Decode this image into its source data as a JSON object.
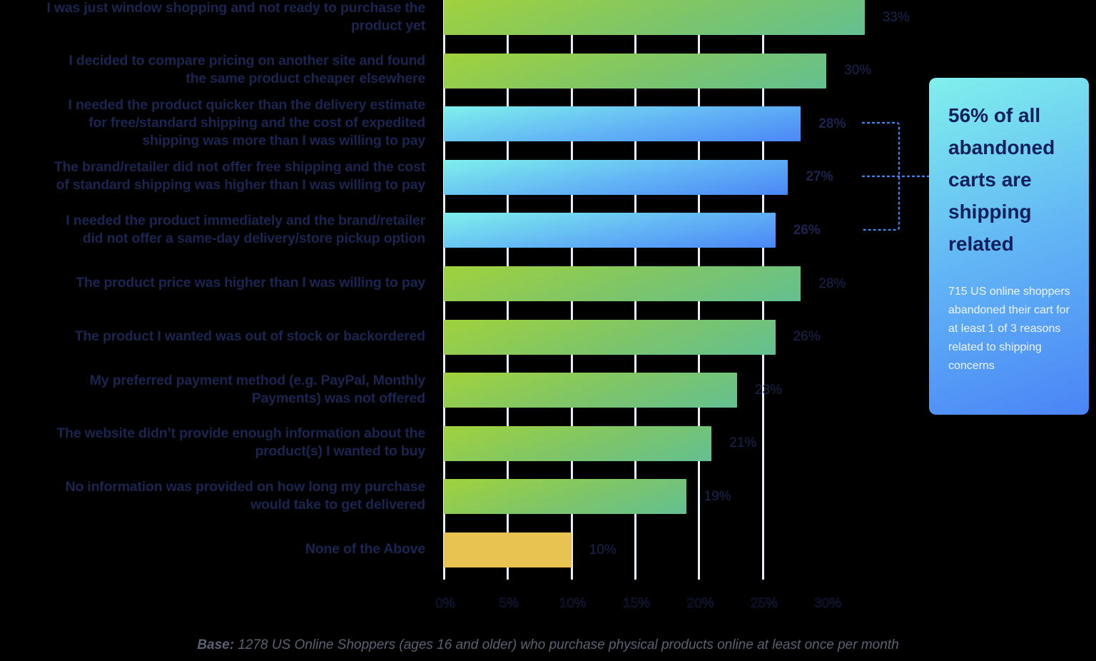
{
  "chart_data": {
    "type": "bar",
    "orientation": "horizontal",
    "title": "",
    "xlabel": "",
    "ylabel": "",
    "xlim": [
      0,
      33
    ],
    "x_ticks": [
      "0%",
      "5%",
      "10%",
      "15%",
      "20%",
      "25%",
      "30%"
    ],
    "grid": true,
    "categories": [
      "I was just window shopping and not ready to purchase the product yet",
      "I decided to compare pricing on another site and found the same product cheaper elsewhere",
      "I needed the product quicker than the delivery estimate for free/standard shipping and the cost of expedited shipping was more than I was willing to pay",
      "The brand/retailer did not offer free shipping and the cost of standard shipping was higher than I was willing to pay",
      "I needed the product immediately and the brand/retailer did not offer a same-day delivery/store pickup option",
      "The product price was higher than I was willing to pay",
      "The product I wanted was out of stock or backordered",
      "My preferred payment method (e.g. PayPal, Monthly Payments) was not offered",
      "The website didn't provide enough information about the product(s) I wanted to buy",
      "No information was provided on how long my purchase would take to get delivered",
      "None of the Above"
    ],
    "values": [
      33,
      30,
      28,
      27,
      26,
      28,
      26,
      23,
      21,
      19,
      10
    ],
    "value_labels": [
      "33%",
      "30%",
      "28%",
      "27%",
      "26%",
      "28%",
      "26%",
      "23%",
      "21%",
      "19%",
      "10%"
    ],
    "highlight_group": {
      "indices": [
        2,
        3,
        4
      ],
      "label": "shipping related",
      "color": "#4b87f6"
    },
    "colors": {
      "default": "#7dc56a",
      "shipping": "#62b4f5",
      "none": "#e8c352"
    },
    "footnote": "Base: 1278 US Online Shoppers (ages 16 and older) who purchase physical products online at least once per month"
  },
  "rows": [
    {
      "label_lines": [
        "I was just window shopping and not ready to purchase the",
        "product yet"
      ],
      "value": 33,
      "value_label": "33%",
      "kind": "green"
    },
    {
      "label_lines": [
        "I decided to compare pricing on another site and found",
        "the same product cheaper elsewhere"
      ],
      "value": 30,
      "value_label": "30%",
      "kind": "green"
    },
    {
      "label_lines": [
        "I needed the product quicker than the delivery estimate",
        "for free/standard shipping and the cost of expedited",
        "shipping was more than I was willing to pay"
      ],
      "value": 28,
      "value_label": "28%",
      "kind": "blue"
    },
    {
      "label_lines": [
        "The brand/retailer did not offer free shipping and the cost",
        "of standard shipping was higher than I was willing to pay"
      ],
      "value": 27,
      "value_label": "27%",
      "kind": "blue"
    },
    {
      "label_lines": [
        "I needed the product immediately and the brand/retailer",
        "did not offer a same-day delivery/store pickup option"
      ],
      "value": 26,
      "value_label": "26%",
      "kind": "blue"
    },
    {
      "label_lines": [
        "The product price was higher than I was willing to pay"
      ],
      "value": 28,
      "value_label": "28%",
      "kind": "green"
    },
    {
      "label_lines": [
        "The product I wanted was out of stock or backordered"
      ],
      "value": 26,
      "value_label": "26%",
      "kind": "green"
    },
    {
      "label_lines": [
        "My preferred payment method (e.g. PayPal, Monthly",
        "Payments) was not offered"
      ],
      "value": 23,
      "value_label": "23%",
      "kind": "green"
    },
    {
      "label_lines": [
        "The website didn’t provide enough information about the",
        "product(s) I wanted to buy"
      ],
      "value": 21,
      "value_label": "21%",
      "kind": "green"
    },
    {
      "label_lines": [
        "No information was provided on how long my purchase",
        "would take to get delivered"
      ],
      "value": 19,
      "value_label": "19%",
      "kind": "green"
    },
    {
      "label_lines": [
        "None of the Above"
      ],
      "value": 10,
      "value_label": "10%",
      "kind": "yellow"
    }
  ],
  "axis": {
    "ticks": [
      {
        "label": "0%",
        "value": 0
      },
      {
        "label": "5%",
        "value": 5
      },
      {
        "label": "10%",
        "value": 10
      },
      {
        "label": "15%",
        "value": 15
      },
      {
        "label": "20%",
        "value": 20
      },
      {
        "label": "25%",
        "value": 25
      },
      {
        "label": "30%",
        "value": 30
      }
    ]
  },
  "callout": {
    "headline": "56% of all abandoned carts are shipping related",
    "body": "715 US online shoppers abandoned their cart for at least 1 of 3 reasons related to shipping concerns"
  },
  "footnote": {
    "bold": "Base:",
    "text": " 1278 US Online Shoppers (ages 16 and older) who purchase physical products online at least once per month"
  }
}
